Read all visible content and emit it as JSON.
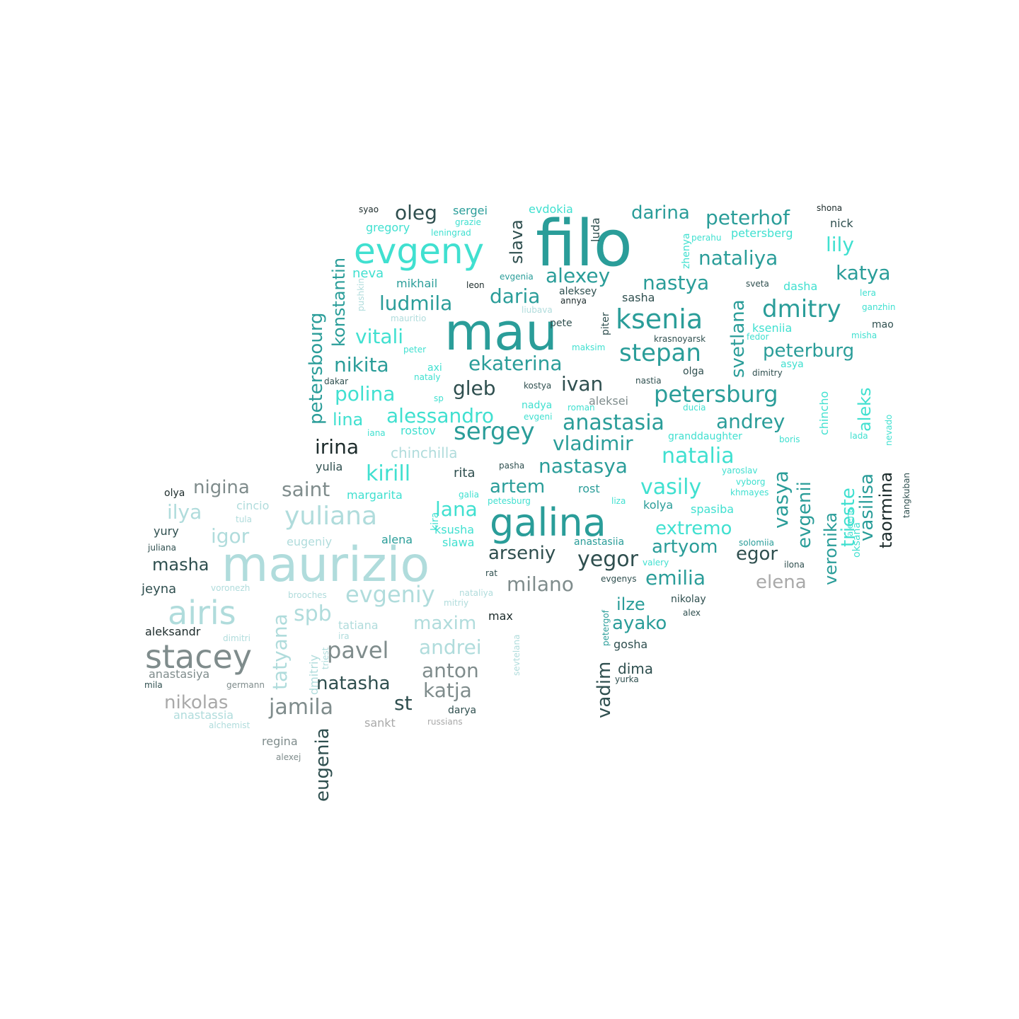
{
  "colors": {
    "background": "#ffffff",
    "palette": [
      "#2a9d99",
      "#40e0d0",
      "#2f4f4f",
      "#7f8c8c",
      "#a9a9a9",
      "#b0dcdc",
      "#1c2b2b"
    ]
  },
  "words": [
    "filo",
    "mau",
    "maurizio",
    "evgeny",
    "galina",
    "airis",
    "stacey",
    "ksenia",
    "yuliana",
    "stepan",
    "dmitry",
    "petersburg",
    "anastasia",
    "sergey",
    "nataliya",
    "peterhof",
    "natalia",
    "kirill",
    "nastasya",
    "vasily",
    "alexey",
    "ekaterina",
    "polina",
    "ludmila",
    "vitali",
    "nikita",
    "gleb",
    "ivan",
    "alessandro",
    "irina",
    "vladimir",
    "andrey",
    "darina",
    "oleg",
    "katya",
    "lily",
    "nastya",
    "daria",
    "peterburg",
    "ilya",
    "nigina",
    "saint",
    "artem",
    "lana",
    "igor",
    "extremo",
    "artyom",
    "emilia",
    "masha",
    "yegor",
    "arseniy",
    "milano",
    "elena",
    "egor",
    "evgeniy",
    "spb",
    "maxim",
    "pavel",
    "andrei",
    "anton",
    "natasha",
    "katja",
    "jamila",
    "st",
    "nikolas",
    "ilze",
    "ayako",
    "vadim",
    "eugenia",
    "tatyana",
    "petersbourg",
    "konstantin",
    "slava",
    "svetlana",
    "vasya",
    "evgenii",
    "veronika",
    "trieste",
    "aleks",
    "vasilisa",
    "taormina",
    "lina",
    "chinchilla",
    "rita",
    "neva",
    "gregory",
    "sergei",
    "evdokia",
    "luda",
    "zhenya",
    "mikhail",
    "aleksey",
    "sasha",
    "sveta",
    "dasha",
    "lera",
    "ganzhin",
    "mao",
    "misha",
    "kseniia",
    "fedor",
    "asya",
    "dimitry",
    "olga",
    "krasnoyarsk",
    "piter",
    "pete",
    "maksim",
    "nastia",
    "kostya",
    "dakar",
    "aleksei",
    "nadya",
    "roman",
    "ducia",
    "chincho",
    "boris",
    "lada",
    "nevado",
    "yaroslav",
    "vyborg",
    "khmayes",
    "rost",
    "spasiba",
    "kolya",
    "liza",
    "solomiia",
    "ilona",
    "oksana",
    "aleena",
    "tangkuban",
    "rostov",
    "yulia",
    "pasha",
    "margarita",
    "galia",
    "petesburg",
    "kira",
    "ksusha",
    "slawa",
    "alena",
    "anastasiia",
    "valery",
    "evgenys",
    "nikolay",
    "alex",
    "rat",
    "nataliya",
    "mitriy",
    "max",
    "sevtelana",
    "petergof",
    "gosha",
    "dima",
    "yurka",
    "darya",
    "russians",
    "sankt",
    "regina",
    "alexej",
    "alchemist",
    "anastassia",
    "germann",
    "mila",
    "anastasiya",
    "aleksandr",
    "dimitri",
    "ira",
    "triest",
    "dmitriy",
    "tatiana",
    "voronezh",
    "brooches",
    "jeyna",
    "juliana",
    "yury",
    "tula",
    "cincio",
    "olya",
    "eugeniy",
    "syao",
    "shona",
    "nick",
    "petersberg",
    "perahu",
    "grazie",
    "leningrad",
    "pushkin",
    "mauritio",
    "leon",
    "evgenia",
    "annya",
    "liubava",
    "axi",
    "peter",
    "nataly",
    "sp",
    "evgeni",
    "iana",
    "granddaughter"
  ]
}
